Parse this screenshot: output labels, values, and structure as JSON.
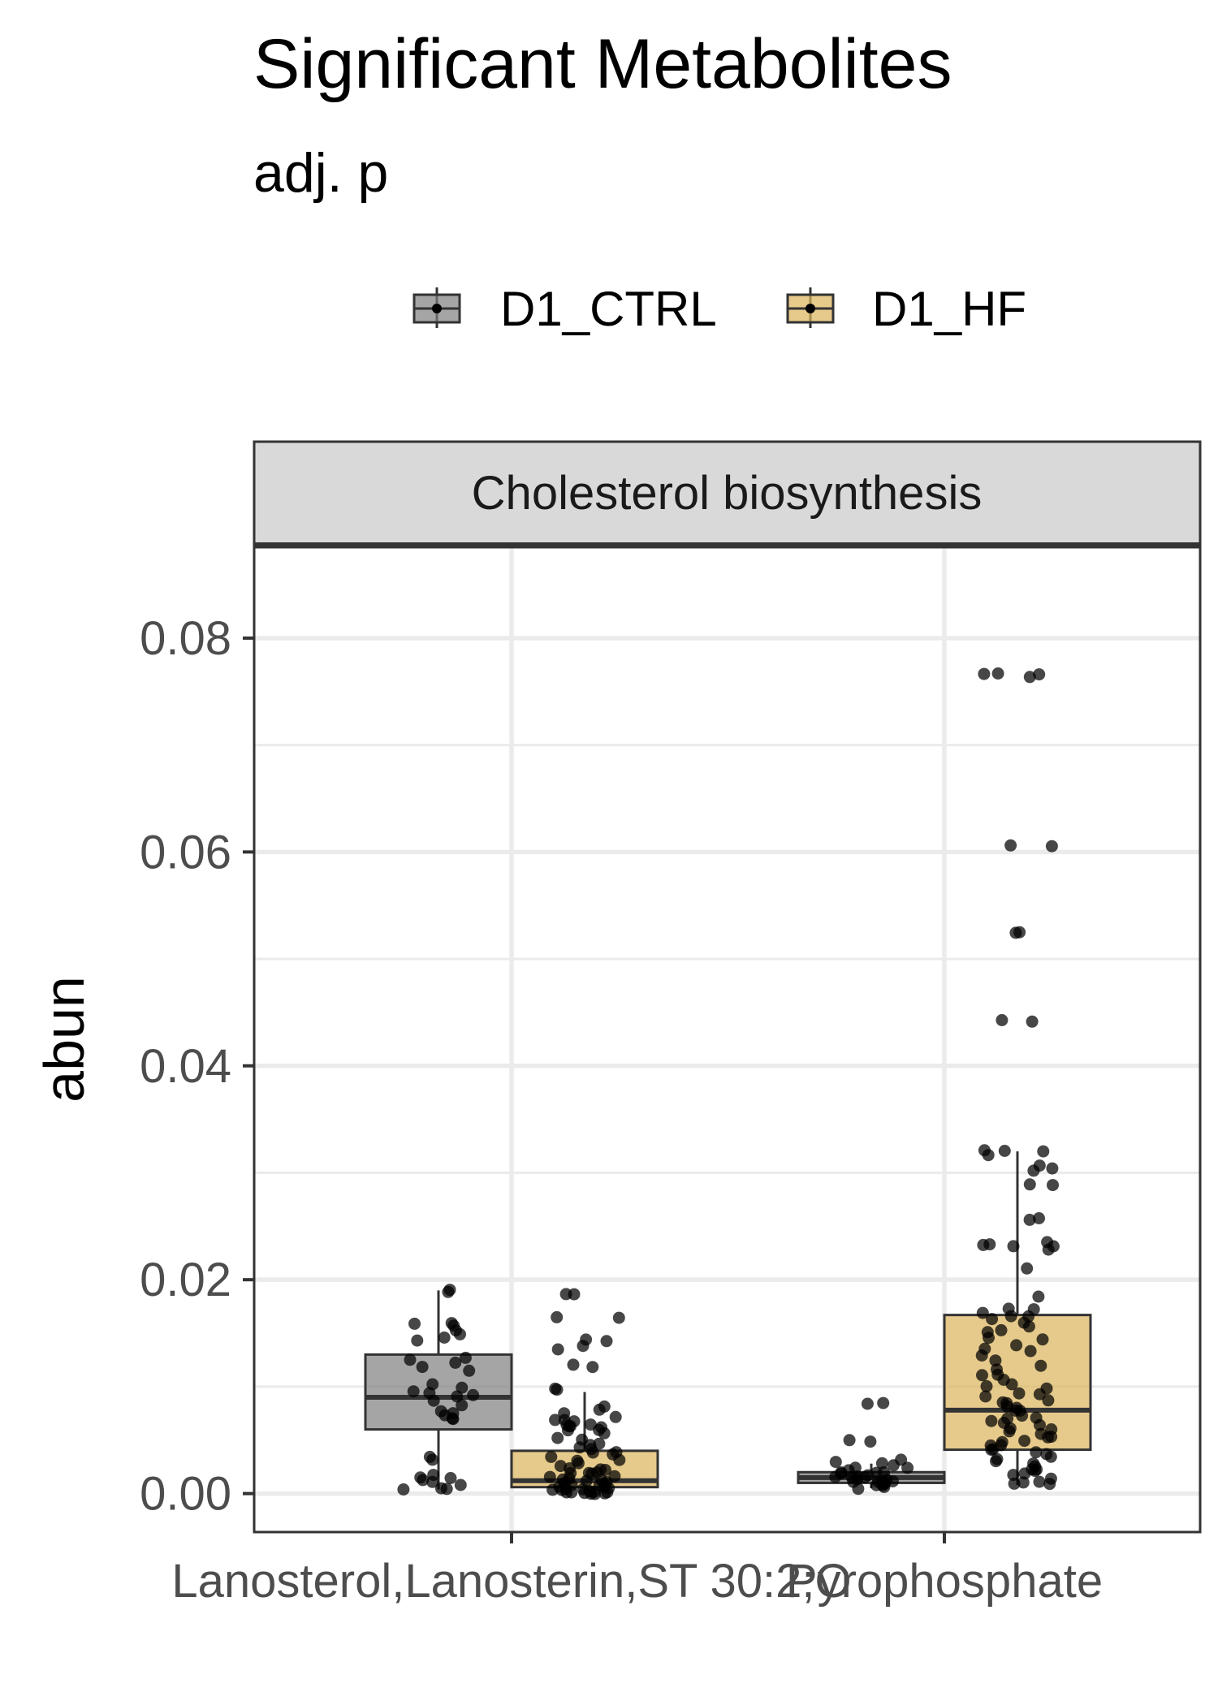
{
  "colors": {
    "ctrl_fill": "#7f7f7f",
    "hf_fill": "#dcb45a",
    "box_fill_opacity": "0.7",
    "point": "#000000",
    "strip_fill": "#d9d9d9",
    "panel_border": "#333333",
    "grid": "#ebebeb",
    "tick_text": "#4d4d4d"
  },
  "chart_data": {
    "type": "box",
    "title": "Significant Metabolites",
    "subtitle": "adj. p",
    "facet_label": "Cholesterol biosynthesis",
    "ylabel": "abun",
    "xlabel": "",
    "ylim": [
      -0.0036,
      0.0885
    ],
    "y_ticks": [
      {
        "value": 0.0,
        "label": "0.00"
      },
      {
        "value": 0.02,
        "label": "0.02"
      },
      {
        "value": 0.04,
        "label": "0.04"
      },
      {
        "value": 0.06,
        "label": "0.06"
      },
      {
        "value": 0.08,
        "label": "0.08"
      }
    ],
    "categories": [
      "Lanosterol,Lanosterin,ST 30:2;O",
      "Pyrophosphate"
    ],
    "legend_position": "top",
    "grid": true,
    "series": [
      {
        "name": "D1_CTRL",
        "color": "#7f7f7f",
        "boxes": [
          {
            "category": "Lanosterol,Lanosterin,ST 30:2;O",
            "min": 0.0004,
            "q1": 0.006,
            "median": 0.009,
            "q3": 0.013,
            "max": 0.019,
            "points": [
              0.019,
              0.019,
              0.016,
              0.016,
              0.0158,
              0.0152,
              0.0148,
              0.0145,
              0.0144,
              0.0128,
              0.0125,
              0.0122,
              0.0118,
              0.0116,
              0.0102,
              0.0098,
              0.0095,
              0.0094,
              0.0092,
              0.009,
              0.0088,
              0.0082,
              0.0078,
              0.0074,
              0.0072,
              0.007,
              0.0069,
              0.0034,
              0.0033,
              0.0016,
              0.0014,
              0.0013,
              0.0012,
              0.001,
              0.0008,
              0.0006,
              0.0005,
              0.0004
            ]
          },
          {
            "category": "Pyrophosphate",
            "min": 0.0005,
            "q1": 0.001,
            "median": 0.0015,
            "q3": 0.002,
            "max": 0.0028,
            "points": [
              0.0084,
              0.0084,
              0.005,
              0.005,
              0.0032,
              0.003,
              0.0028,
              0.0027,
              0.0025,
              0.0024,
              0.0022,
              0.0021,
              0.002,
              0.002,
              0.0019,
              0.0018,
              0.0017,
              0.0016,
              0.0015,
              0.0015,
              0.0014,
              0.0013,
              0.0012,
              0.0012,
              0.0011,
              0.001,
              0.001,
              0.0009,
              0.0008,
              0.0007,
              0.0006,
              0.0005
            ]
          }
        ]
      },
      {
        "name": "D1_HF",
        "color": "#dcb45a",
        "boxes": [
          {
            "category": "Lanosterol,Lanosterin,ST 30:2;O",
            "min": 0.0,
            "q1": 0.0006,
            "median": 0.0012,
            "q3": 0.004,
            "max": 0.0095,
            "points": [
              0.0186,
              0.0186,
              0.0165,
              0.0165,
              0.0145,
              0.0142,
              0.0138,
              0.0136,
              0.0119,
              0.0118,
              0.0097,
              0.0096,
              0.0082,
              0.0078,
              0.0075,
              0.0071,
              0.007,
              0.0069,
              0.0068,
              0.0066,
              0.0065,
              0.0064,
              0.0063,
              0.0062,
              0.006,
              0.0058,
              0.0055,
              0.0052,
              0.005,
              0.0047,
              0.0045,
              0.0043,
              0.0041,
              0.004,
              0.0038,
              0.0036,
              0.0034,
              0.0032,
              0.003,
              0.0028,
              0.0027,
              0.0025,
              0.0024,
              0.0022,
              0.0021,
              0.002,
              0.0019,
              0.0018,
              0.0017,
              0.0016,
              0.0015,
              0.0014,
              0.0013,
              0.0012,
              0.0011,
              0.001,
              0.0009,
              0.0008,
              0.0007,
              0.0006,
              0.0005,
              0.0005,
              0.0004,
              0.0004,
              0.0003,
              0.0003,
              0.0002,
              0.0002,
              0.0001,
              0.0001,
              0.0001,
              0.0,
              0.0,
              0.0,
              0.0
            ]
          },
          {
            "category": "Pyrophosphate",
            "min": 0.0008,
            "q1": 0.0041,
            "median": 0.0078,
            "q3": 0.0167,
            "max": 0.032,
            "points": [
              0.0768,
              0.0767,
              0.0766,
              0.0765,
              0.0606,
              0.0606,
              0.0525,
              0.0525,
              0.0442,
              0.0442,
              0.032,
              0.032,
              0.0319,
              0.0318,
              0.0307,
              0.0305,
              0.0303,
              0.0289,
              0.0288,
              0.0257,
              0.0256,
              0.0235,
              0.0233,
              0.0232,
              0.0231,
              0.023,
              0.0228,
              0.0212,
              0.0185,
              0.0172,
              0.0171,
              0.017,
              0.0167,
              0.0165,
              0.0162,
              0.016,
              0.0155,
              0.0152,
              0.015,
              0.0145,
              0.0143,
              0.014,
              0.0136,
              0.0133,
              0.0128,
              0.0125,
              0.012,
              0.0116,
              0.0112,
              0.011,
              0.0106,
              0.0102,
              0.0099,
              0.0097,
              0.0095,
              0.0092,
              0.009,
              0.0088,
              0.0086,
              0.0084,
              0.0082,
              0.008,
              0.0078,
              0.0076,
              0.0074,
              0.0072,
              0.007,
              0.0068,
              0.0066,
              0.0064,
              0.0062,
              0.006,
              0.0058,
              0.0056,
              0.0054,
              0.0052,
              0.005,
              0.0048,
              0.0046,
              0.0044,
              0.0042,
              0.004,
              0.0038,
              0.0036,
              0.0034,
              0.0032,
              0.003,
              0.0028,
              0.0026,
              0.0024,
              0.0022,
              0.002,
              0.0018,
              0.0016,
              0.0014,
              0.0012,
              0.001,
              0.0009,
              0.0008
            ]
          }
        ]
      }
    ]
  }
}
